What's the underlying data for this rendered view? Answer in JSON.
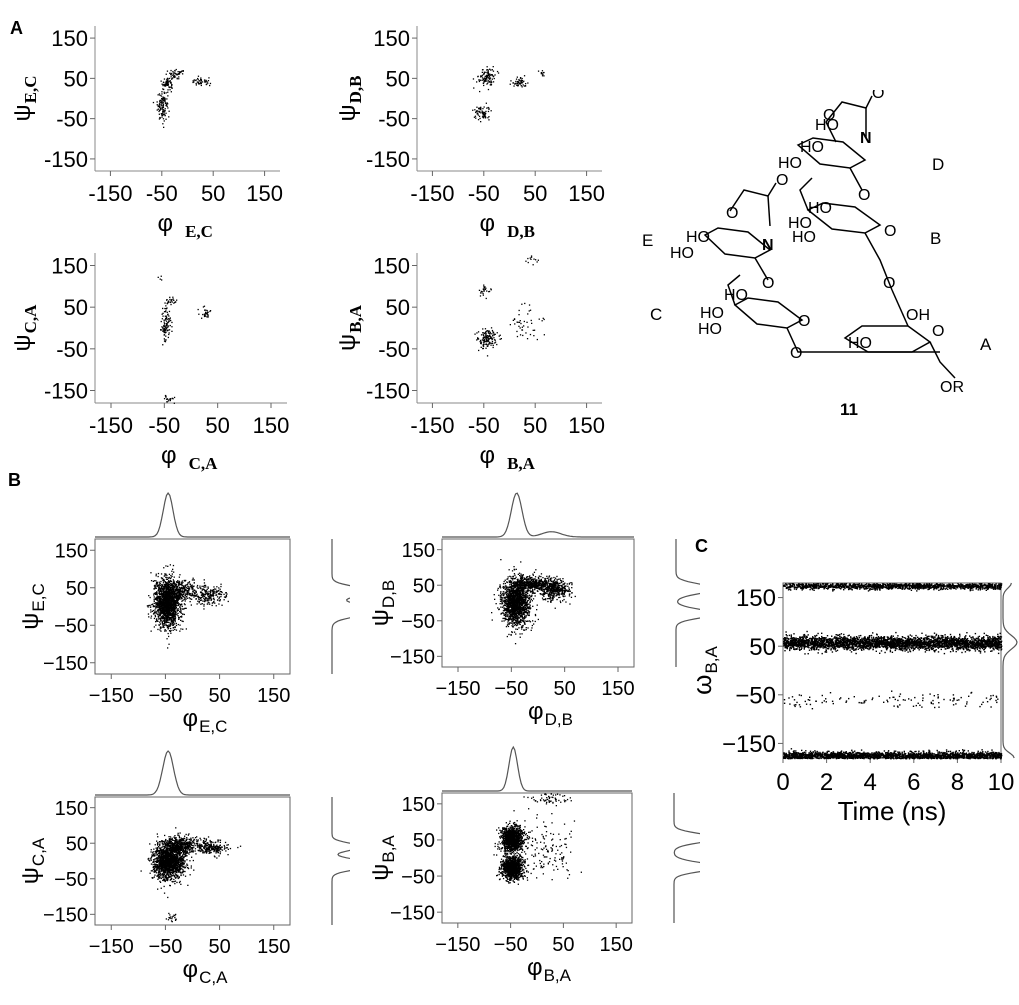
{
  "panel_labels": {
    "a": "A",
    "b": "B",
    "c": "C"
  },
  "colors": {
    "ink": "#000000",
    "background": "#ffffff"
  },
  "chart_data": [
    {
      "id": "A1",
      "panel": "A",
      "type": "scatter",
      "xlabel": "φ",
      "xlabel_sub": "E,C",
      "ylabel": "ψ",
      "ylabel_sub": "E,C",
      "xlim": [
        -180,
        180
      ],
      "ylim": [
        -180,
        180
      ],
      "xticks": [
        "-150",
        "-50",
        "50",
        "150"
      ],
      "yticks": [
        "150",
        "50",
        "-50",
        "-150"
      ],
      "grid": false,
      "legend": "none",
      "clusters": [
        {
          "x": -40,
          "y": 40,
          "sx": 5,
          "sy": 8,
          "n": 70
        },
        {
          "x": -50,
          "y": -15,
          "sx": 5,
          "sy": 18,
          "n": 110
        },
        {
          "x": -22,
          "y": 62,
          "sx": 10,
          "sy": 5,
          "n": 45
        },
        {
          "x": 25,
          "y": 42,
          "sx": 9,
          "sy": 5,
          "n": 45
        }
      ]
    },
    {
      "id": "A2",
      "panel": "A",
      "type": "scatter",
      "xlabel": "φ",
      "xlabel_sub": "D,B",
      "ylabel": "ψ",
      "ylabel_sub": "D,B",
      "xlim": [
        -180,
        180
      ],
      "ylim": [
        -180,
        180
      ],
      "xticks": [
        "-150",
        "-50",
        "50",
        "150"
      ],
      "yticks": [
        "150",
        "50",
        "-50",
        "-150"
      ],
      "grid": false,
      "legend": "none",
      "clusters": [
        {
          "x": -45,
          "y": 55,
          "sx": 8,
          "sy": 12,
          "n": 110
        },
        {
          "x": -55,
          "y": -35,
          "sx": 8,
          "sy": 10,
          "n": 70
        },
        {
          "x": 18,
          "y": 42,
          "sx": 8,
          "sy": 6,
          "n": 55
        },
        {
          "x": 60,
          "y": 62,
          "sx": 5,
          "sy": 5,
          "n": 10
        }
      ]
    },
    {
      "id": "A3",
      "panel": "A",
      "type": "scatter",
      "xlabel": "φ",
      "xlabel_sub": "C,A",
      "ylabel": "ψ",
      "ylabel_sub": "C,A",
      "xlim": [
        -180,
        180
      ],
      "ylim": [
        -180,
        180
      ],
      "xticks": [
        "-150",
        "-50",
        "50",
        "150"
      ],
      "yticks": [
        "150",
        "50",
        "-50",
        "-150"
      ],
      "grid": false,
      "legend": "none",
      "clusters": [
        {
          "x": -48,
          "y": 10,
          "sx": 5,
          "sy": 22,
          "n": 110
        },
        {
          "x": -38,
          "y": 65,
          "sx": 5,
          "sy": 6,
          "n": 25
        },
        {
          "x": 25,
          "y": 38,
          "sx": 6,
          "sy": 6,
          "n": 30
        },
        {
          "x": -42,
          "y": -170,
          "sx": 5,
          "sy": 5,
          "n": 20
        },
        {
          "x": -58,
          "y": 120,
          "sx": 3,
          "sy": 3,
          "n": 4
        }
      ]
    },
    {
      "id": "A4",
      "panel": "A",
      "type": "scatter",
      "xlabel": "φ",
      "xlabel_sub": "B,A",
      "ylabel": "ψ",
      "ylabel_sub": "B,A",
      "xlim": [
        -180,
        180
      ],
      "ylim": [
        -180,
        180
      ],
      "xticks": [
        "-150",
        "-50",
        "50",
        "150"
      ],
      "yticks": [
        "150",
        "50",
        "-50",
        "-150"
      ],
      "grid": false,
      "legend": "none",
      "clusters": [
        {
          "x": -45,
          "y": -25,
          "sx": 10,
          "sy": 12,
          "n": 140
        },
        {
          "x": -50,
          "y": 90,
          "sx": 5,
          "sy": 8,
          "n": 25
        },
        {
          "x": 30,
          "y": 10,
          "sx": 15,
          "sy": 20,
          "n": 45
        },
        {
          "x": 40,
          "y": 165,
          "sx": 8,
          "sy": 5,
          "n": 12
        }
      ]
    },
    {
      "id": "B1",
      "panel": "B",
      "type": "scatter",
      "xlabel": "φ",
      "xlabel_sub": "E,C",
      "ylabel": "ψ",
      "ylabel_sub": "E,C",
      "xlim": [
        -180,
        180
      ],
      "ylim": [
        -180,
        180
      ],
      "xticks": [
        "−150",
        "−50",
        "50",
        "150"
      ],
      "yticks": [
        "150",
        "50",
        "−50",
        "−150"
      ],
      "grid": false,
      "legend": "none",
      "marginals": true,
      "clusters": [
        {
          "x": -48,
          "y": 10,
          "sx": 12,
          "sy": 32,
          "n": 1600
        },
        {
          "x": -18,
          "y": 45,
          "sx": 18,
          "sy": 12,
          "n": 300
        },
        {
          "x": 30,
          "y": 30,
          "sx": 15,
          "sy": 12,
          "n": 200
        }
      ],
      "x_marginal": [
        {
          "mu": -45,
          "sigma": 9,
          "w": 1
        }
      ],
      "y_marginal": [
        {
          "mu": 40,
          "sigma": 12,
          "w": 0.85
        },
        {
          "mu": -10,
          "sigma": 14,
          "w": 1
        }
      ]
    },
    {
      "id": "B2",
      "panel": "B",
      "type": "scatter",
      "xlabel": "φ",
      "xlabel_sub": "D,B",
      "ylabel": "ψ",
      "ylabel_sub": "D,B",
      "xlim": [
        -180,
        180
      ],
      "ylim": [
        -180,
        180
      ],
      "xticks": [
        "−150",
        "−50",
        "50",
        "150"
      ],
      "yticks": [
        "150",
        "50",
        "−50",
        "−150"
      ],
      "grid": false,
      "legend": "none",
      "marginals": true,
      "clusters": [
        {
          "x": -42,
          "y": 5,
          "sx": 13,
          "sy": 33,
          "n": 1500
        },
        {
          "x": -10,
          "y": 55,
          "sx": 20,
          "sy": 10,
          "n": 450
        },
        {
          "x": 30,
          "y": 40,
          "sx": 14,
          "sy": 14,
          "n": 400
        }
      ],
      "x_marginal": [
        {
          "mu": -40,
          "sigma": 10,
          "w": 1
        },
        {
          "mu": 25,
          "sigma": 18,
          "w": 0.12
        }
      ],
      "y_marginal": [
        {
          "mu": 40,
          "sigma": 13,
          "w": 0.8
        },
        {
          "mu": -30,
          "sigma": 12,
          "w": 0.8
        }
      ]
    },
    {
      "id": "B3",
      "panel": "B",
      "type": "scatter",
      "xlabel": "φ",
      "xlabel_sub": "C,A",
      "ylabel": "ψ",
      "ylabel_sub": "C,A",
      "xlim": [
        -180,
        180
      ],
      "ylim": [
        -180,
        180
      ],
      "xticks": [
        "−150",
        "−50",
        "50",
        "150"
      ],
      "yticks": [
        "150",
        "50",
        "−50",
        "−150"
      ],
      "grid": false,
      "legend": "none",
      "marginals": true,
      "clusters": [
        {
          "x": -45,
          "y": 0,
          "sx": 14,
          "sy": 24,
          "n": 1500
        },
        {
          "x": -25,
          "y": 45,
          "sx": 16,
          "sy": 12,
          "n": 500
        },
        {
          "x": 30,
          "y": 40,
          "sx": 16,
          "sy": 10,
          "n": 250
        },
        {
          "x": -40,
          "y": -155,
          "sx": 5,
          "sy": 8,
          "n": 20
        }
      ],
      "x_marginal": [
        {
          "mu": -45,
          "sigma": 10,
          "w": 1
        }
      ],
      "y_marginal": [
        {
          "mu": 40,
          "sigma": 10,
          "w": 0.6
        },
        {
          "mu": -10,
          "sigma": 12,
          "w": 1
        }
      ]
    },
    {
      "id": "B4",
      "panel": "B",
      "type": "scatter",
      "xlabel": "φ",
      "xlabel_sub": "B,A",
      "ylabel": "ψ",
      "ylabel_sub": "B,A",
      "xlim": [
        -180,
        180
      ],
      "ylim": [
        -180,
        180
      ],
      "xticks": [
        "−150",
        "−50",
        "50",
        "150"
      ],
      "yticks": [
        "150",
        "50",
        "−50",
        "−150"
      ],
      "grid": false,
      "legend": "none",
      "marginals": true,
      "clusters": [
        {
          "x": -48,
          "y": 55,
          "sx": 10,
          "sy": 18,
          "n": 1100
        },
        {
          "x": -48,
          "y": -25,
          "sx": 10,
          "sy": 16,
          "n": 1100
        },
        {
          "x": 15,
          "y": 20,
          "sx": 30,
          "sy": 40,
          "n": 150
        },
        {
          "x": 25,
          "y": 165,
          "sx": 20,
          "sy": 8,
          "n": 60
        }
      ],
      "x_marginal": [
        {
          "mu": -45,
          "sigma": 8,
          "w": 1
        }
      ],
      "y_marginal": [
        {
          "mu": 55,
          "sigma": 12,
          "w": 0.9
        },
        {
          "mu": -25,
          "sigma": 12,
          "w": 0.9
        }
      ]
    },
    {
      "id": "C",
      "panel": "C",
      "type": "scatter",
      "xlabel": "Time (ns)",
      "ylabel": "ω",
      "ylabel_sub": "B,A",
      "xlim": [
        0,
        10
      ],
      "ylim": [
        -180,
        180
      ],
      "xticks": [
        "0",
        "2",
        "4",
        "6",
        "8",
        "10"
      ],
      "yticks": [
        "150",
        "50",
        "−50",
        "−150"
      ],
      "grid": false,
      "legend": "none",
      "bands": [
        {
          "y": 58,
          "sy": 7,
          "n": 3200
        },
        {
          "y": 175,
          "sy": 3.5,
          "n": 1400
        },
        {
          "y": -175,
          "sy": 4.5,
          "n": 2400
        },
        {
          "y": -60,
          "sy": 8,
          "n": 120
        }
      ]
    }
  ],
  "structure": {
    "compound_number": "11",
    "ring_labels": [
      "A",
      "B",
      "C",
      "D",
      "E"
    ],
    "substituent_labels": [
      "HO",
      "O",
      "N",
      "OH",
      "OR"
    ]
  }
}
